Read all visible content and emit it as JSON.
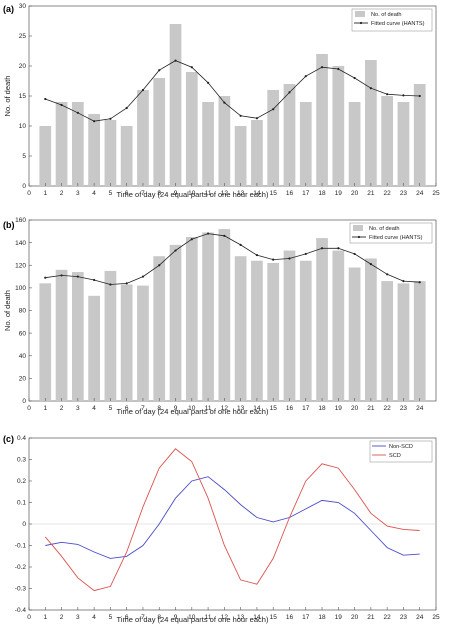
{
  "chart_data": [
    {
      "panel_label": "(a)",
      "type": "bar",
      "x": [
        1,
        2,
        3,
        4,
        5,
        6,
        7,
        8,
        9,
        10,
        11,
        12,
        13,
        14,
        15,
        16,
        17,
        18,
        19,
        20,
        21,
        22,
        23,
        24
      ],
      "xlim": [
        0,
        25
      ],
      "ylim": [
        0,
        30
      ],
      "xticks": [
        0,
        1,
        2,
        3,
        4,
        5,
        6,
        7,
        8,
        9,
        10,
        11,
        12,
        13,
        14,
        15,
        16,
        17,
        18,
        19,
        20,
        21,
        22,
        23,
        24,
        25
      ],
      "yticks": [
        0,
        5,
        10,
        15,
        20,
        25,
        30
      ],
      "xlabel": "Time of day (24 equal parts of one hour each)",
      "ylabel": "No. of death",
      "legend_position": "top-right",
      "series": [
        {
          "name": "No. of death",
          "type": "bar",
          "color": "#c8c8c8",
          "values": [
            10,
            14,
            14,
            12,
            11,
            10,
            16,
            18,
            27,
            19,
            14,
            15,
            10,
            11,
            16,
            17,
            14,
            22,
            20,
            14,
            21,
            15,
            14,
            17
          ]
        },
        {
          "name": "Fitted curve (HANTS)",
          "type": "line",
          "color": "#222222",
          "values": [
            14.5,
            13.5,
            12.2,
            10.8,
            11.2,
            13.0,
            16.0,
            19.3,
            20.9,
            19.8,
            17.2,
            13.9,
            11.7,
            11.3,
            12.8,
            15.6,
            18.3,
            19.8,
            19.5,
            18.0,
            16.3,
            15.3,
            15.1,
            15.0
          ]
        }
      ]
    },
    {
      "panel_label": "(b)",
      "type": "bar",
      "x": [
        1,
        2,
        3,
        4,
        5,
        6,
        7,
        8,
        9,
        10,
        11,
        12,
        13,
        14,
        15,
        16,
        17,
        18,
        19,
        20,
        21,
        22,
        23,
        24
      ],
      "xlim": [
        0,
        25
      ],
      "ylim": [
        0,
        160
      ],
      "xticks": [
        0,
        1,
        2,
        3,
        4,
        5,
        6,
        7,
        8,
        9,
        10,
        11,
        12,
        13,
        14,
        15,
        16,
        17,
        18,
        19,
        20,
        21,
        22,
        23,
        24
      ],
      "yticks": [
        0,
        20,
        40,
        60,
        80,
        100,
        120,
        140,
        160
      ],
      "xlabel": "Time of day (24 equal parts of one hour each)",
      "ylabel": "No. of death",
      "legend_position": "top-right",
      "series": [
        {
          "name": "No. of death",
          "type": "bar",
          "color": "#c8c8c8",
          "values": [
            104,
            116,
            114,
            93,
            115,
            103,
            102,
            128,
            138,
            145,
            149,
            152,
            128,
            124,
            122,
            133,
            124,
            144,
            133,
            118,
            126,
            106,
            104,
            106
          ]
        },
        {
          "name": "Fitted curve (HANTS)",
          "type": "line",
          "color": "#222222",
          "values": [
            109,
            111,
            110,
            107,
            103,
            104,
            110,
            120,
            133,
            143,
            148,
            146,
            138,
            129,
            125,
            126,
            130,
            135,
            135,
            130,
            121,
            112,
            106,
            105
          ]
        }
      ]
    },
    {
      "panel_label": "(c)",
      "type": "line",
      "x": [
        1,
        2,
        3,
        4,
        5,
        6,
        7,
        8,
        9,
        10,
        11,
        12,
        13,
        14,
        15,
        16,
        17,
        18,
        19,
        20,
        21,
        22,
        23,
        24
      ],
      "xlim": [
        0,
        25
      ],
      "ylim": [
        -0.4,
        0.4
      ],
      "xticks": [
        0,
        1,
        2,
        3,
        4,
        5,
        6,
        7,
        8,
        9,
        10,
        11,
        12,
        13,
        14,
        15,
        16,
        17,
        18,
        19,
        20,
        21,
        22,
        23,
        24,
        25
      ],
      "yticks": [
        -0.4,
        -0.3,
        -0.2,
        -0.1,
        0,
        0.1,
        0.2,
        0.3,
        0.4
      ],
      "ytick_labels": [
        "-0.4",
        "-0.3",
        "-0.2",
        "-0.1",
        "0",
        "0.1",
        "0.2",
        "0.3",
        "0.4"
      ],
      "xlabel": "Time of day (24 equal parts of one hour each)",
      "ylabel": "",
      "legend_position": "top-right",
      "series": [
        {
          "name": "Non-SCD",
          "type": "line",
          "color": "#4b4bc8",
          "values": [
            -0.1,
            -0.085,
            -0.095,
            -0.13,
            -0.16,
            -0.15,
            -0.1,
            0.0,
            0.12,
            0.2,
            0.22,
            0.16,
            0.09,
            0.03,
            0.01,
            0.03,
            0.07,
            0.11,
            0.1,
            0.05,
            -0.03,
            -0.11,
            -0.145,
            -0.14
          ]
        },
        {
          "name": "SCD",
          "type": "line",
          "color": "#d9534f",
          "values": [
            -0.06,
            -0.15,
            -0.25,
            -0.31,
            -0.29,
            -0.13,
            0.08,
            0.26,
            0.35,
            0.29,
            0.12,
            -0.1,
            -0.26,
            -0.28,
            -0.16,
            0.03,
            0.2,
            0.28,
            0.26,
            0.16,
            0.05,
            -0.01,
            -0.025,
            -0.03
          ]
        }
      ]
    }
  ]
}
